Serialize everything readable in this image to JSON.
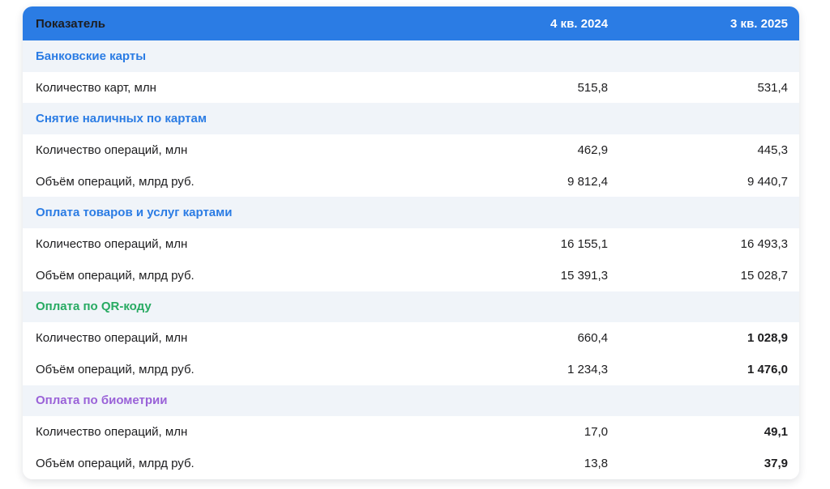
{
  "colors": {
    "header_bg": "#2b7ce4",
    "header_text": "#ffffff",
    "section_row_bg": "#f0f4f9",
    "section_blue": "#2b7ce4",
    "section_green": "#27aa62",
    "section_purple": "#9a62d8",
    "body_text": "#1d1d1f"
  },
  "chart_data": {
    "type": "table",
    "columns": [
      "Показатель",
      "4 кв. 2024",
      "3 кв. 2025"
    ],
    "sections": [
      {
        "title": "Банковские карты",
        "color": "#2b7ce4",
        "rows": [
          {
            "label": "Количество карт, млн",
            "q4_2024": "515,8",
            "q3_2025": "531,4",
            "bold_2025": false
          }
        ]
      },
      {
        "title": "Снятие наличных по картам",
        "color": "#2b7ce4",
        "rows": [
          {
            "label": "Количество операций, млн",
            "q4_2024": "462,9",
            "q3_2025": "445,3",
            "bold_2025": false
          },
          {
            "label": "Объём операций, млрд руб.",
            "q4_2024": "9 812,4",
            "q3_2025": "9 440,7",
            "bold_2025": false
          }
        ]
      },
      {
        "title": "Оплата товаров и услуг картами",
        "color": "#2b7ce4",
        "rows": [
          {
            "label": "Количество операций, млн",
            "q4_2024": "16 155,1",
            "q3_2025": "16 493,3",
            "bold_2025": false
          },
          {
            "label": "Объём операций, млрд руб.",
            "q4_2024": "15 391,3",
            "q3_2025": "15 028,7",
            "bold_2025": false
          }
        ]
      },
      {
        "title": "Оплата по QR-коду",
        "color": "#27aa62",
        "rows": [
          {
            "label": "Количество операций, млн",
            "q4_2024": "660,4",
            "q3_2025": "1 028,9",
            "bold_2025": true
          },
          {
            "label": "Объём операций, млрд руб.",
            "q4_2024": "1 234,3",
            "q3_2025": "1 476,0",
            "bold_2025": true
          }
        ]
      },
      {
        "title": "Оплата по биометрии",
        "color": "#9a62d8",
        "rows": [
          {
            "label": "Количество операций, млн",
            "q4_2024": "17,0",
            "q3_2025": "49,1",
            "bold_2025": true
          },
          {
            "label": "Объём операций, млрд руб.",
            "q4_2024": "13,8",
            "q3_2025": "37,9",
            "bold_2025": true
          }
        ]
      }
    ]
  }
}
